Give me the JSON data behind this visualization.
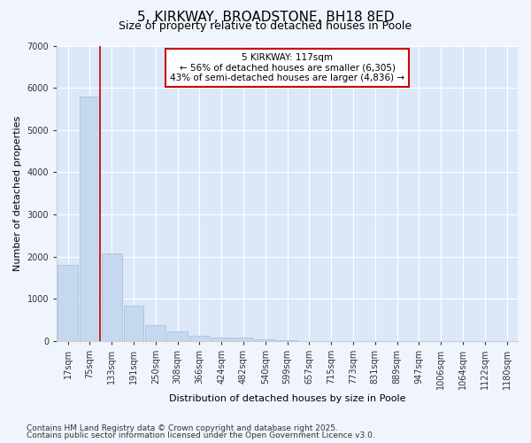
{
  "title1": "5, KIRKWAY, BROADSTONE, BH18 8ED",
  "title2": "Size of property relative to detached houses in Poole",
  "xlabel": "Distribution of detached houses by size in Poole",
  "ylabel": "Number of detached properties",
  "bar_labels": [
    "17sqm",
    "75sqm",
    "133sqm",
    "191sqm",
    "250sqm",
    "308sqm",
    "366sqm",
    "424sqm",
    "482sqm",
    "540sqm",
    "599sqm",
    "657sqm",
    "715sqm",
    "773sqm",
    "831sqm",
    "889sqm",
    "947sqm",
    "1006sqm",
    "1064sqm",
    "1122sqm",
    "1180sqm"
  ],
  "bar_values": [
    1800,
    5800,
    2080,
    840,
    370,
    220,
    130,
    90,
    85,
    30,
    10,
    5,
    3,
    0,
    0,
    0,
    0,
    0,
    0,
    0,
    0
  ],
  "bar_color": "#c5d8f0",
  "bar_edge_color": "#9bbde0",
  "vline_color": "#cc0000",
  "ylim": [
    0,
    7000
  ],
  "annotation_text": "5 KIRKWAY: 117sqm\n← 56% of detached houses are smaller (6,305)\n43% of semi-detached houses are larger (4,836) →",
  "annotation_box_color": "#ffffff",
  "annotation_box_edge": "#cc0000",
  "footnote1": "Contains HM Land Registry data © Crown copyright and database right 2025.",
  "footnote2": "Contains public sector information licensed under the Open Government Licence v3.0.",
  "bg_color": "#f0f4fc",
  "plot_bg_color": "#dce8f8",
  "title_fontsize": 11,
  "subtitle_fontsize": 9,
  "axis_label_fontsize": 8,
  "tick_fontsize": 7,
  "footnote_fontsize": 6.5
}
